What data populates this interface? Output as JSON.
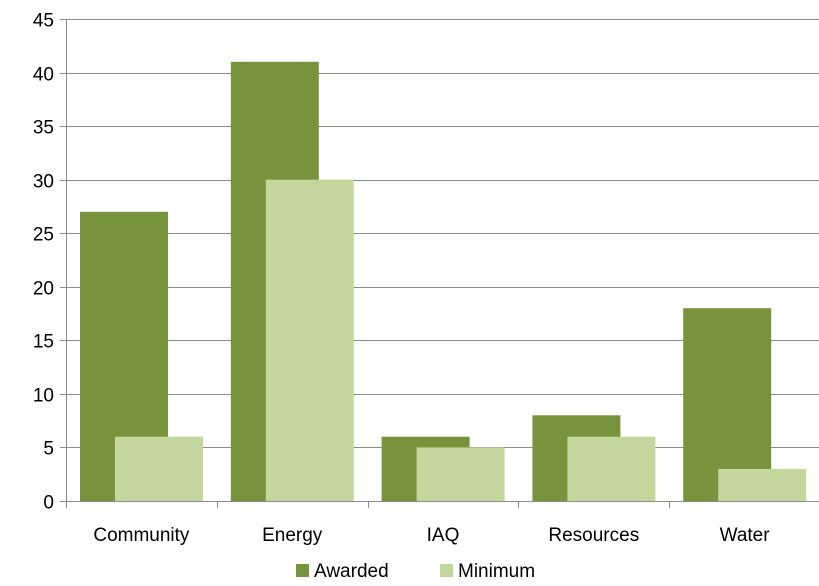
{
  "chart_data": {
    "type": "bar",
    "categories": [
      "Community",
      "Energy",
      "IAQ",
      "Resources",
      "Water"
    ],
    "series": [
      {
        "name": "Awarded",
        "values": [
          27,
          41,
          6,
          8,
          18
        ],
        "color": "#77933c"
      },
      {
        "name": "Minimum",
        "values": [
          6,
          30,
          5,
          6,
          3
        ],
        "color": "#c3d69b"
      }
    ],
    "title": "",
    "xlabel": "",
    "ylabel": "",
    "ylim": [
      0,
      45
    ],
    "yticks": [
      0,
      5,
      10,
      15,
      20,
      25,
      30,
      35,
      40,
      45
    ],
    "grid": true,
    "legend_position": "bottom",
    "colors": {
      "gridline": "#8c8c8c",
      "axis": "#8c8c8c",
      "text": "#000000"
    }
  }
}
